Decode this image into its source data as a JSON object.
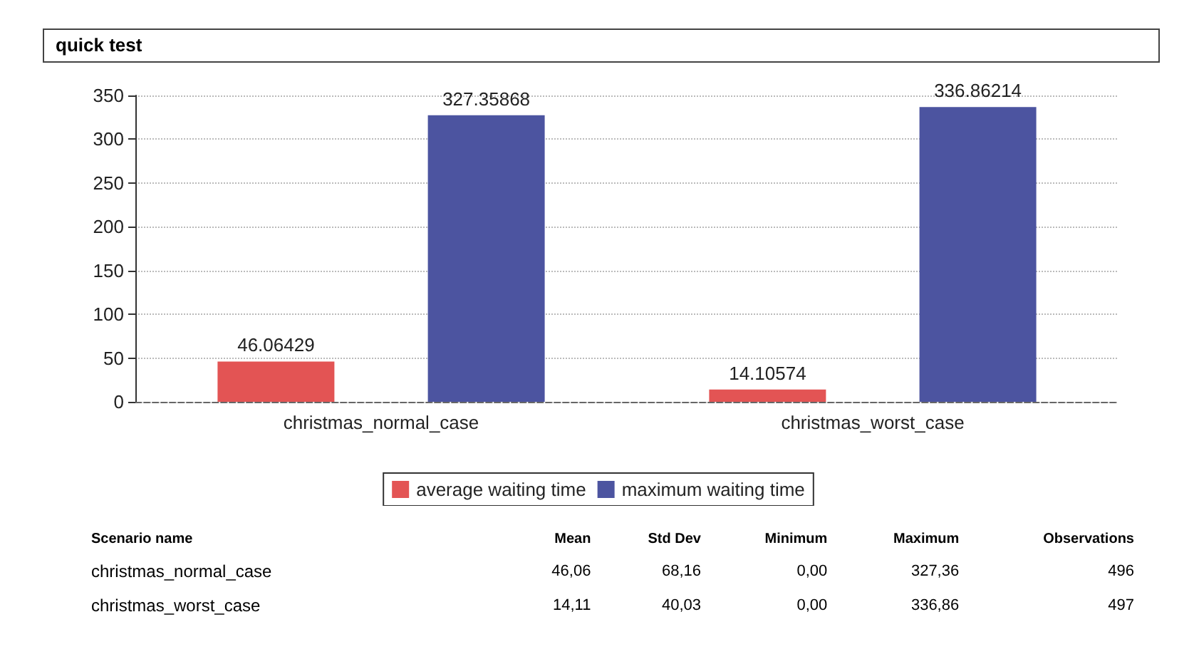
{
  "chart_data": {
    "type": "bar",
    "title": "quick test",
    "categories": [
      "christmas_normal_case",
      "christmas_worst_case"
    ],
    "series": [
      {
        "name": "average waiting time",
        "color": "#e35454",
        "values": [
          46.06429,
          14.10574
        ]
      },
      {
        "name": "maximum waiting time",
        "color": "#4c54a0",
        "values": [
          327.35868,
          336.86214
        ]
      }
    ],
    "ylim": [
      0,
      350
    ],
    "yticks": [
      0,
      50,
      100,
      150,
      200,
      250,
      300,
      350
    ],
    "grid": "y",
    "legend": "bottom",
    "data_labels": true,
    "annotations": [
      "Scenario name",
      "Mean",
      "Std Dev",
      "Minimum",
      "Maximum",
      "Observations",
      "christmas_normal_case",
      "46,06",
      "68,16",
      "0,00",
      "327,36",
      "496",
      "christmas_worst_case",
      "14,11",
      "40,03",
      "0,00",
      "336,86",
      "497"
    ]
  }
}
